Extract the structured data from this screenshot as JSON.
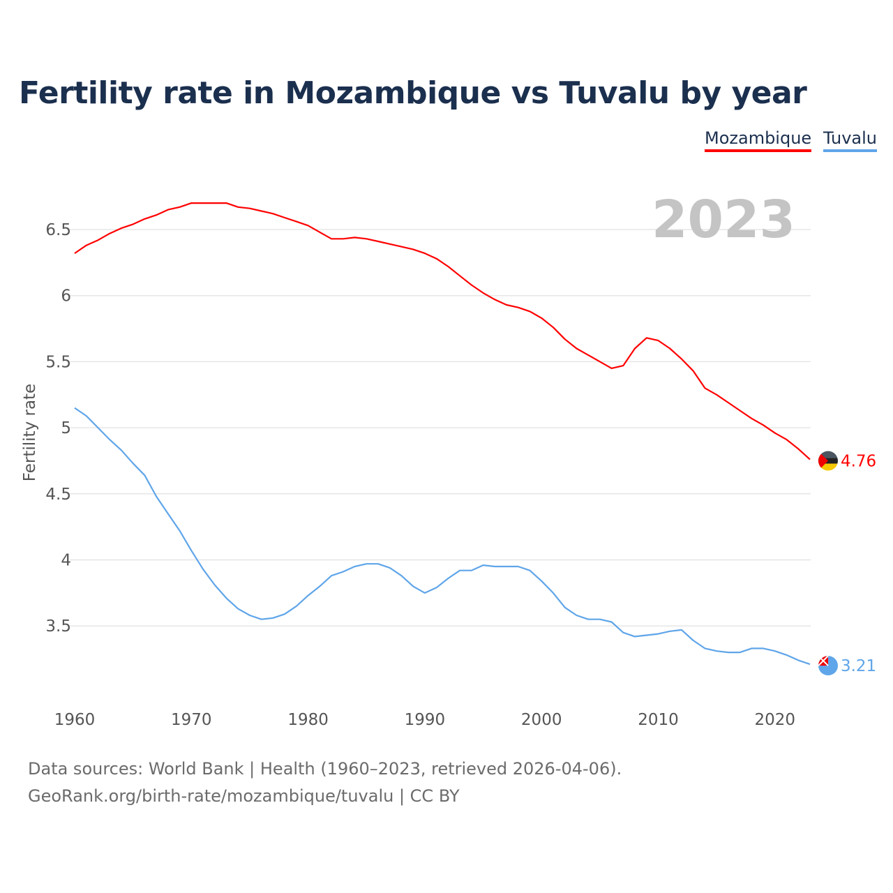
{
  "title": "Fertility rate in Mozambique vs Tuvalu by year",
  "legend": [
    {
      "label": "Mozambique",
      "color": "#ff0000"
    },
    {
      "label": "Tuvalu",
      "color": "#5fa5e9"
    }
  ],
  "year_watermark": "2023",
  "footer": {
    "line1": "Data sources: World Bank | Health (1960–2023, retrieved 2026-04-06).",
    "line2": "GeoRank.org/birth-rate/mozambique/tuvalu | CC BY"
  },
  "chart_data": {
    "type": "line",
    "title": "Fertility rate in Mozambique vs Tuvalu by year",
    "xlabel": "",
    "ylabel": "Fertility rate",
    "xlim": [
      1960,
      2023
    ],
    "ylim": [
      3.0,
      6.9
    ],
    "x_ticks": [
      "1960",
      "1970",
      "1980",
      "1990",
      "2000",
      "2010",
      "2020"
    ],
    "y_ticks": [
      "3.5",
      "4",
      "4.5",
      "5",
      "5.5",
      "6",
      "6.5"
    ],
    "grid": true,
    "legend_position": "top-right",
    "x": [
      1960,
      1961,
      1962,
      1963,
      1964,
      1965,
      1966,
      1967,
      1968,
      1969,
      1970,
      1971,
      1972,
      1973,
      1974,
      1975,
      1976,
      1977,
      1978,
      1979,
      1980,
      1981,
      1982,
      1983,
      1984,
      1985,
      1986,
      1987,
      1988,
      1989,
      1990,
      1991,
      1992,
      1993,
      1994,
      1995,
      1996,
      1997,
      1998,
      1999,
      2000,
      2001,
      2002,
      2003,
      2004,
      2005,
      2006,
      2007,
      2008,
      2009,
      2010,
      2011,
      2012,
      2013,
      2014,
      2015,
      2016,
      2017,
      2018,
      2019,
      2020,
      2021,
      2022,
      2023
    ],
    "series": [
      {
        "name": "Mozambique",
        "color": "#ff0000",
        "end_label": "4.76",
        "flag": "mozambique-flag",
        "values": [
          6.32,
          6.38,
          6.42,
          6.47,
          6.51,
          6.54,
          6.58,
          6.61,
          6.65,
          6.67,
          6.7,
          6.7,
          6.7,
          6.7,
          6.67,
          6.66,
          6.64,
          6.62,
          6.59,
          6.56,
          6.53,
          6.48,
          6.43,
          6.43,
          6.44,
          6.43,
          6.41,
          6.39,
          6.37,
          6.35,
          6.32,
          6.28,
          6.22,
          6.15,
          6.08,
          6.02,
          5.97,
          5.93,
          5.91,
          5.88,
          5.83,
          5.76,
          5.67,
          5.6,
          5.55,
          5.5,
          5.45,
          5.47,
          5.6,
          5.68,
          5.66,
          5.6,
          5.52,
          5.43,
          5.3,
          5.25,
          5.19,
          5.13,
          5.07,
          5.02,
          4.96,
          4.91,
          4.84,
          4.76
        ]
      },
      {
        "name": "Tuvalu",
        "color": "#5fa5e9",
        "end_label": "3.21",
        "flag": "tuvalu-flag",
        "values": [
          5.15,
          5.09,
          5.0,
          4.91,
          4.83,
          4.73,
          4.64,
          4.48,
          4.35,
          4.22,
          4.07,
          3.93,
          3.81,
          3.71,
          3.63,
          3.58,
          3.55,
          3.56,
          3.59,
          3.65,
          3.73,
          3.8,
          3.88,
          3.91,
          3.95,
          3.97,
          3.97,
          3.94,
          3.88,
          3.8,
          3.75,
          3.79,
          3.86,
          3.92,
          3.92,
          3.96,
          3.95,
          3.95,
          3.95,
          3.92,
          3.84,
          3.75,
          3.64,
          3.58,
          3.55,
          3.55,
          3.53,
          3.45,
          3.42,
          3.43,
          3.44,
          3.46,
          3.47,
          3.39,
          3.33,
          3.31,
          3.3,
          3.3,
          3.33,
          3.33,
          3.31,
          3.28,
          3.24,
          3.21
        ]
      }
    ]
  }
}
